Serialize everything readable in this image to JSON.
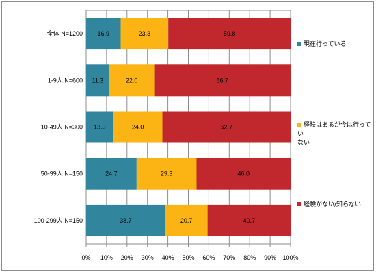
{
  "chart_data": {
    "type": "bar",
    "orientation": "horizontal",
    "stacked": "percent",
    "categories": [
      "全体 N=1200",
      "1-9人 N=600",
      "10-49人 N=300",
      "50-99人 N=150",
      "100-299人 N=150"
    ],
    "series": [
      {
        "name": "現在行っている",
        "color": "#31859c",
        "values": [
          16.9,
          11.3,
          13.3,
          24.7,
          38.7
        ]
      },
      {
        "name": "経験はあるが今は行っていない",
        "color": "#fbb414",
        "values": [
          23.3,
          22.0,
          24.0,
          29.3,
          20.7
        ]
      },
      {
        "name": "経験がない/知らない",
        "color": "#c0282d",
        "values": [
          59.8,
          66.7,
          62.7,
          46.0,
          40.7
        ]
      }
    ],
    "data_labels": [
      [
        "16.9",
        "23.3",
        "59.8"
      ],
      [
        "11.3",
        "22.0",
        "66.7"
      ],
      [
        "13.3",
        "24.0",
        "62.7"
      ],
      [
        "24.7",
        "29.3",
        "46.0"
      ],
      [
        "38.7",
        "20.7",
        "40.7"
      ]
    ],
    "x_ticks": [
      "0%",
      "10%",
      "20%",
      "30%",
      "40%",
      "50%",
      "60%",
      "70%",
      "80%",
      "90%",
      "100%"
    ],
    "xlim": [
      0,
      100
    ],
    "grid": "vertical",
    "legend_position": "right",
    "legend_labels": [
      "現在行っている",
      "経験はあるが今は行ってい\nない",
      "経験がない/知らない"
    ]
  }
}
